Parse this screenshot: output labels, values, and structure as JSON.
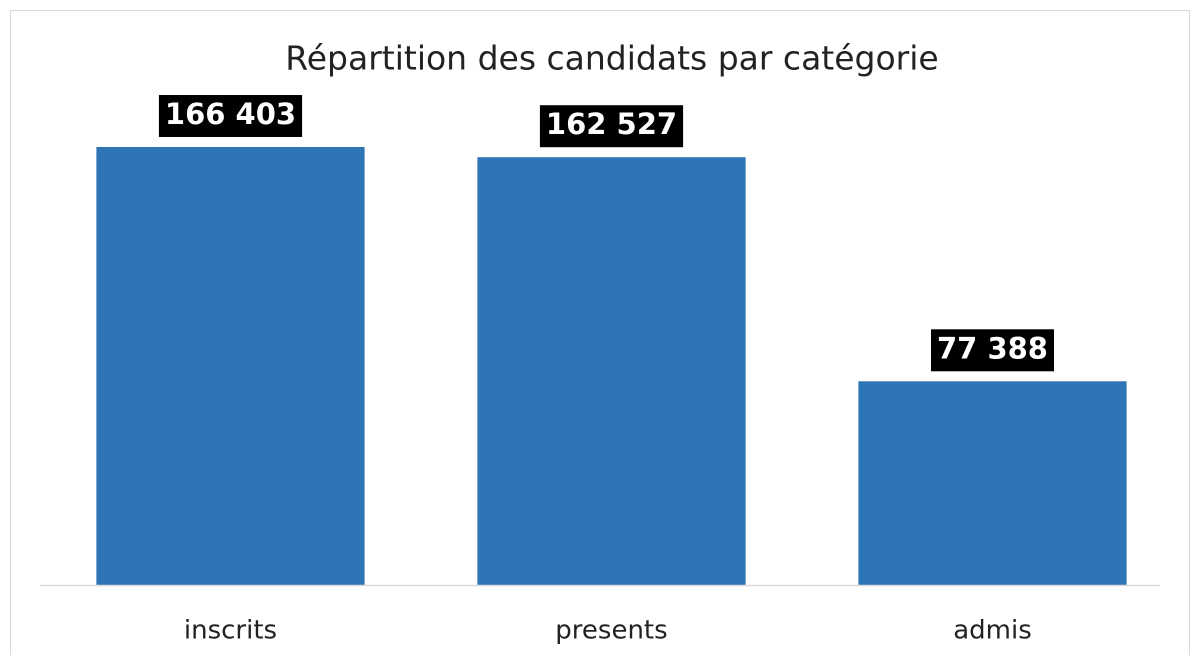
{
  "chart_data": {
    "type": "bar",
    "title": "Répartition des candidats par catégorie",
    "categories": [
      "inscrits",
      "presents",
      "admis"
    ],
    "values": [
      166403,
      162527,
      77388
    ],
    "value_labels": [
      "166 403",
      "162 527",
      "77 388"
    ],
    "color": "#2e75b6"
  }
}
